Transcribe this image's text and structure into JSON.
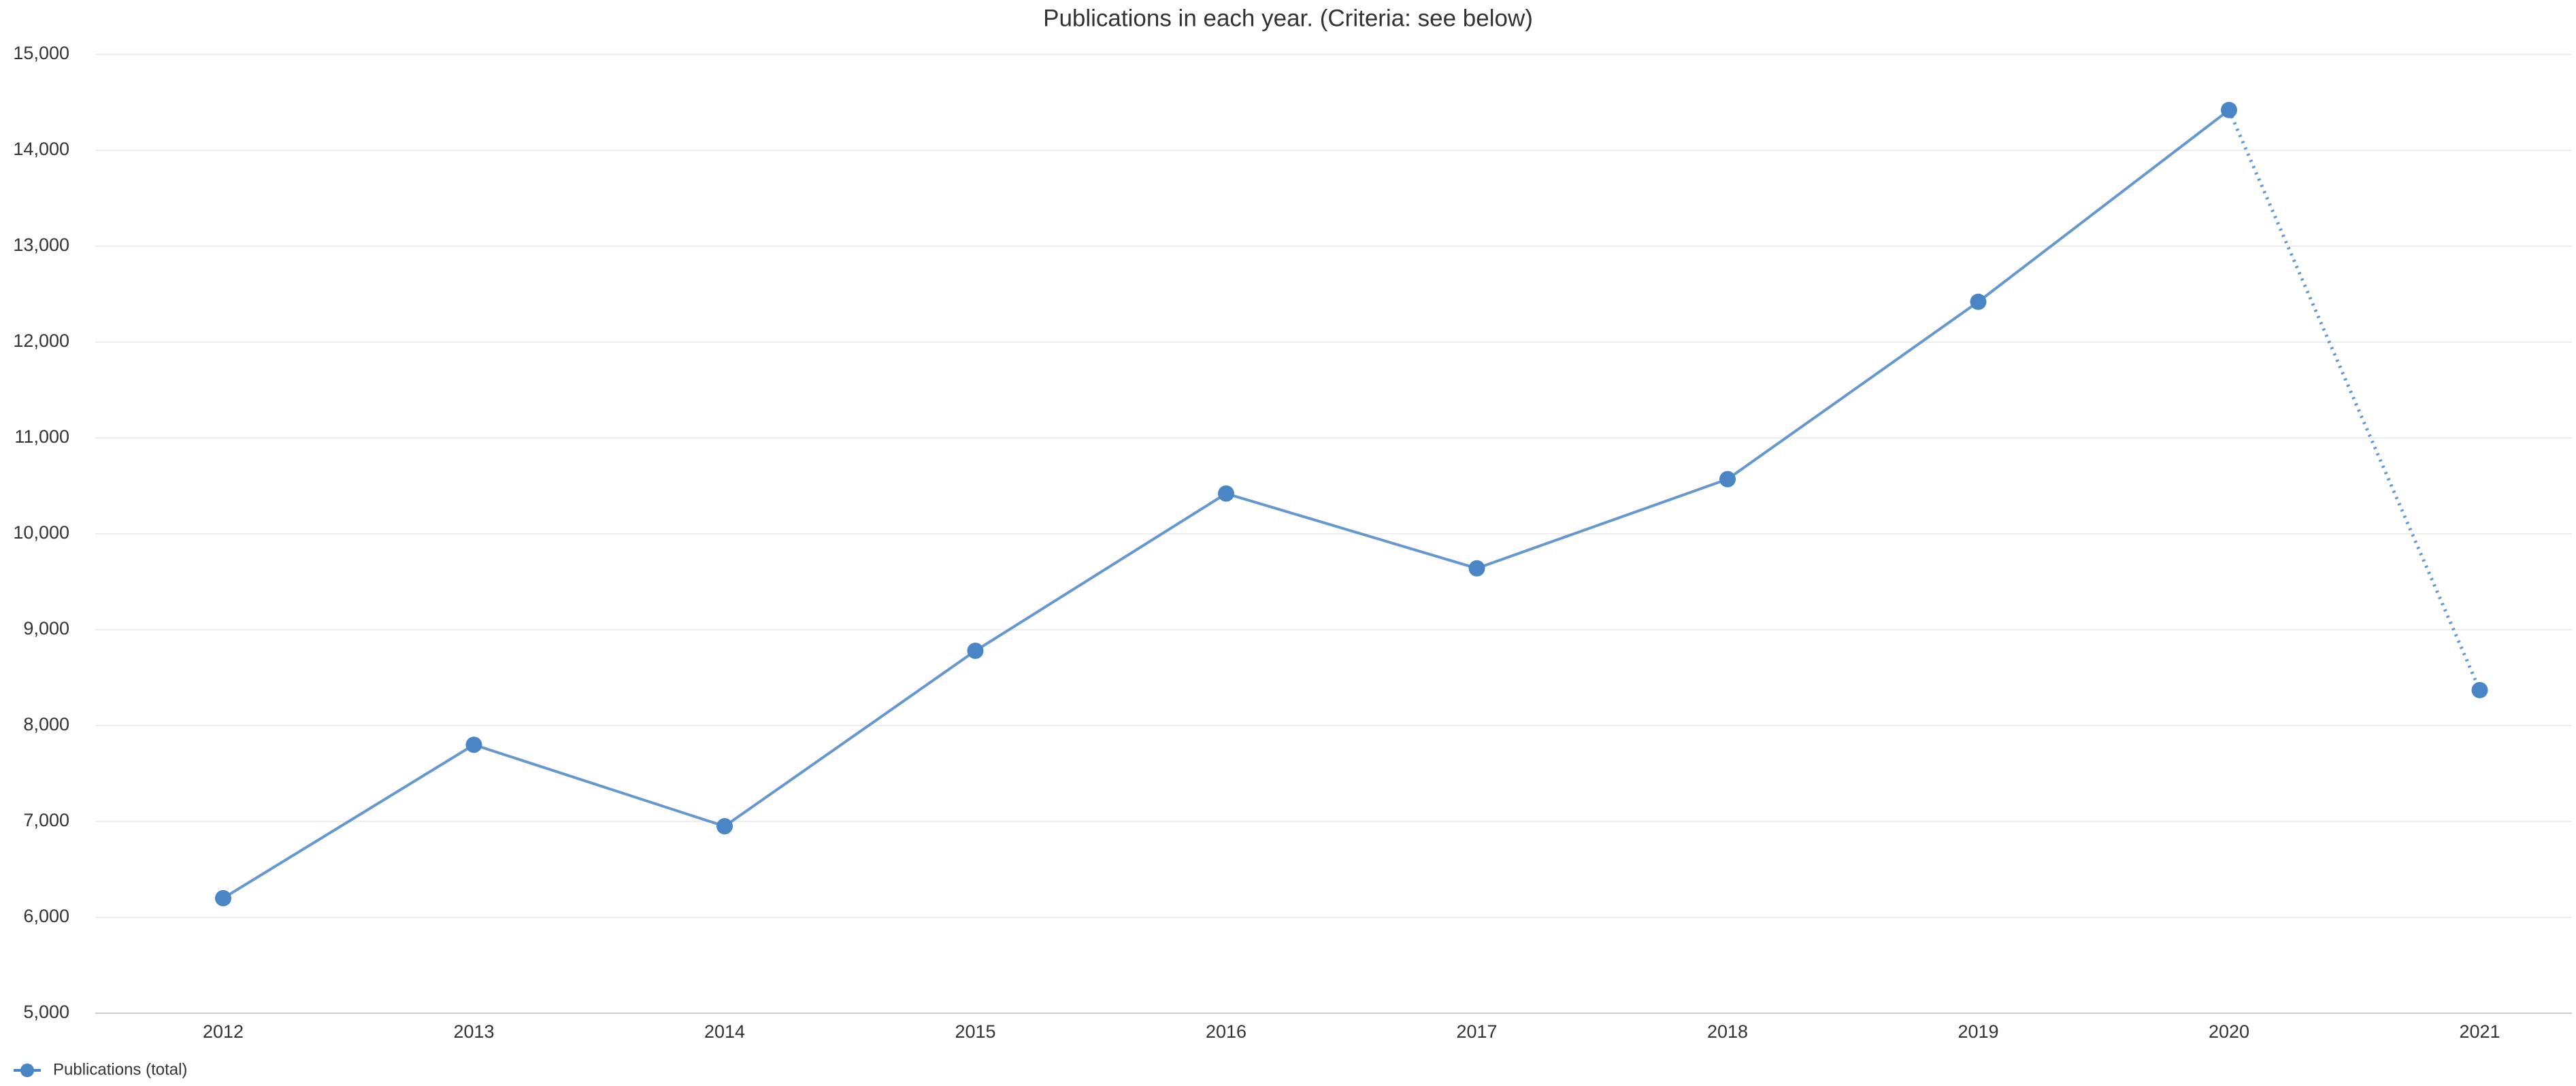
{
  "chart_data": {
    "type": "line",
    "title": "Publications in each year. (Criteria: see below)",
    "categories": [
      "2012",
      "2013",
      "2014",
      "2015",
      "2016",
      "2017",
      "2018",
      "2019",
      "2020",
      "2021"
    ],
    "series": [
      {
        "name": "Publications (total)",
        "color": "#4a86c5",
        "values": [
          6200,
          7800,
          6950,
          8780,
          10420,
          9640,
          10570,
          12420,
          14420,
          8370
        ]
      }
    ],
    "last_segment_dotted": true,
    "ylim": [
      5000,
      15000
    ],
    "yticks": [
      {
        "value": 5000,
        "label": "5,000"
      },
      {
        "value": 6000,
        "label": "6,000"
      },
      {
        "value": 7000,
        "label": "7,000"
      },
      {
        "value": 8000,
        "label": "8,000"
      },
      {
        "value": 9000,
        "label": "9,000"
      },
      {
        "value": 10000,
        "label": "10,000"
      },
      {
        "value": 11000,
        "label": "11,000"
      },
      {
        "value": 12000,
        "label": "12,000"
      },
      {
        "value": 13000,
        "label": "13,000"
      },
      {
        "value": 14000,
        "label": "14,000"
      },
      {
        "value": 15000,
        "label": "15,000"
      }
    ],
    "grid": true,
    "legend": "bottom-left"
  }
}
